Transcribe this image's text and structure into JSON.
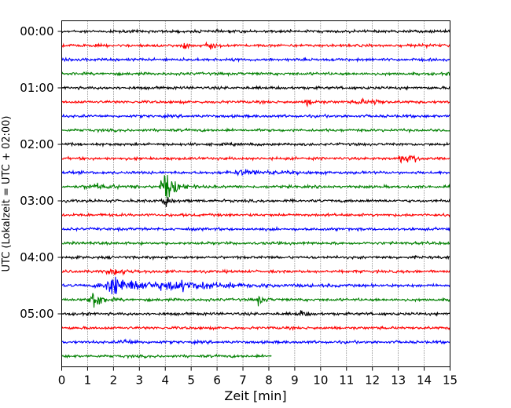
{
  "chart_data": {
    "type": "line",
    "subtype": "helicorder",
    "xlabel": "Zeit  [min]",
    "ylabel": "UTC (Lokalzeit = UTC + 02:00)",
    "xlim": [
      0,
      15
    ],
    "x_ticks": [
      "0",
      "1",
      "2",
      "3",
      "4",
      "5",
      "6",
      "7",
      "8",
      "9",
      "10",
      "11",
      "12",
      "13",
      "14",
      "15"
    ],
    "y_ticks": [
      "00:00",
      "01:00",
      "02:00",
      "03:00",
      "04:00",
      "05:00"
    ],
    "y_tick_rows": [
      0,
      4,
      8,
      12,
      16,
      20
    ],
    "vertical_grid": "dotted",
    "colors": [
      "#000000",
      "#ff0000",
      "#0000ff",
      "#008000"
    ],
    "row_count": 24,
    "row_minutes": 15,
    "last_row_end_min": 8.1,
    "events": [
      {
        "row": 1,
        "t": 4.7,
        "amp": 2.2,
        "dur": 0.2
      },
      {
        "row": 1,
        "t": 5.6,
        "amp": 3.0,
        "dur": 0.3
      },
      {
        "row": 1,
        "t": 14.0,
        "amp": 2.2,
        "dur": 0.2
      },
      {
        "row": 5,
        "t": 9.5,
        "amp": 2.6,
        "dur": 0.3
      },
      {
        "row": 5,
        "t": 11.5,
        "amp": 2.4,
        "dur": 0.3
      },
      {
        "row": 5,
        "t": 12.1,
        "amp": 2.0,
        "dur": 0.3
      },
      {
        "row": 9,
        "t": 13.1,
        "amp": 3.2,
        "dur": 0.4
      },
      {
        "row": 9,
        "t": 13.5,
        "amp": 2.4,
        "dur": 0.3
      },
      {
        "row": 10,
        "t": 7.0,
        "amp": 1.6,
        "dur": 1.5
      },
      {
        "row": 11,
        "t": 1.2,
        "amp": 2.0,
        "dur": 0.8
      },
      {
        "row": 11,
        "t": 3.97,
        "amp": 13.0,
        "dur": 0.45
      },
      {
        "row": 12,
        "t": 4.0,
        "amp": 6.5,
        "dur": 0.2
      },
      {
        "row": 17,
        "t": 2.0,
        "amp": 2.0,
        "dur": 0.8
      },
      {
        "row": 18,
        "t": 2.0,
        "amp": 8.0,
        "dur": 1.3
      },
      {
        "row": 18,
        "t": 4.5,
        "amp": 3.0,
        "dur": 2.5
      },
      {
        "row": 19,
        "t": 1.2,
        "amp": 10.0,
        "dur": 0.35
      },
      {
        "row": 19,
        "t": 7.6,
        "amp": 3.5,
        "dur": 0.25
      },
      {
        "row": 20,
        "t": 9.2,
        "amp": 2.4,
        "dur": 0.3
      },
      {
        "row": 22,
        "t": 2.4,
        "amp": 1.6,
        "dur": 0.6
      }
    ]
  }
}
